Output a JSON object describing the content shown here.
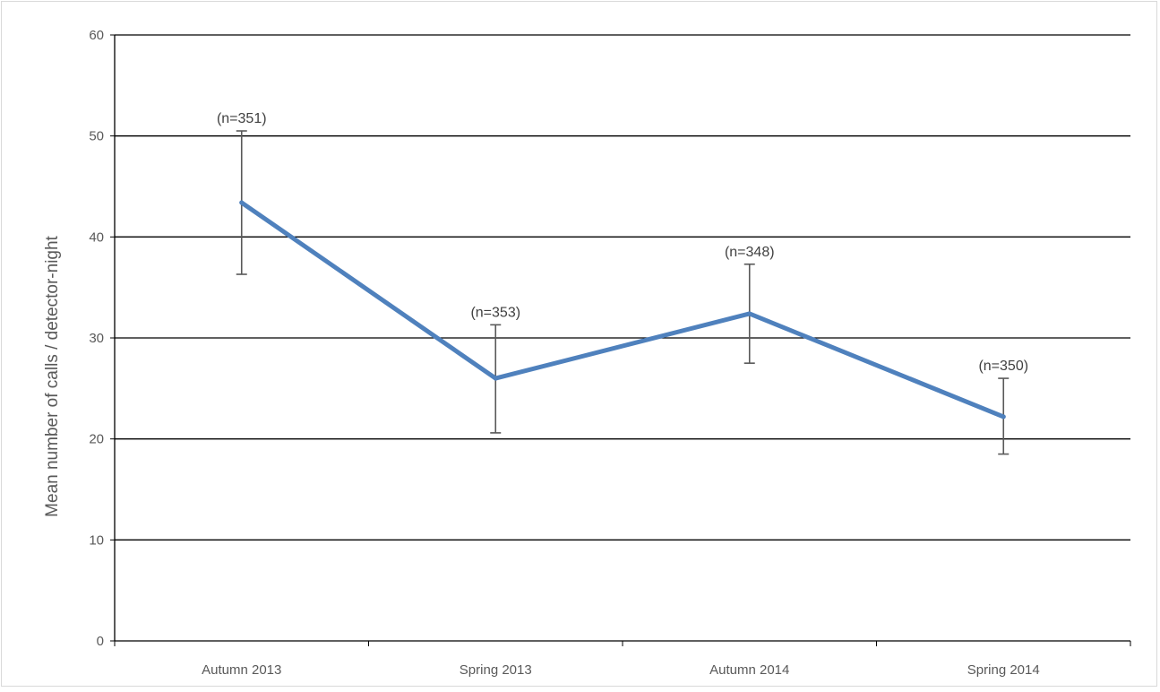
{
  "chart_data": {
    "type": "line",
    "title": "",
    "xlabel": "",
    "ylabel": "Mean number of calls / detector-night",
    "ylim": [
      0,
      60
    ],
    "yticks": [
      0,
      10,
      20,
      30,
      40,
      50,
      60
    ],
    "grid": true,
    "categories": [
      "Autumn 2013",
      "Spring 2013",
      "Autumn 2014",
      "Spring 2014"
    ],
    "series": [
      {
        "values": [
          43.4,
          26.0,
          32.4,
          22.2
        ],
        "error_upper": [
          50.5,
          31.3,
          37.3,
          26.0
        ],
        "error_lower": [
          36.3,
          20.6,
          27.5,
          18.5
        ],
        "annotations": [
          "(n=351)",
          "(n=353)",
          "(n=348)",
          "(n=350)"
        ]
      }
    ],
    "colors": {
      "line": "#4f81bd",
      "error_bar": "#595959",
      "grid": "#000000"
    }
  }
}
